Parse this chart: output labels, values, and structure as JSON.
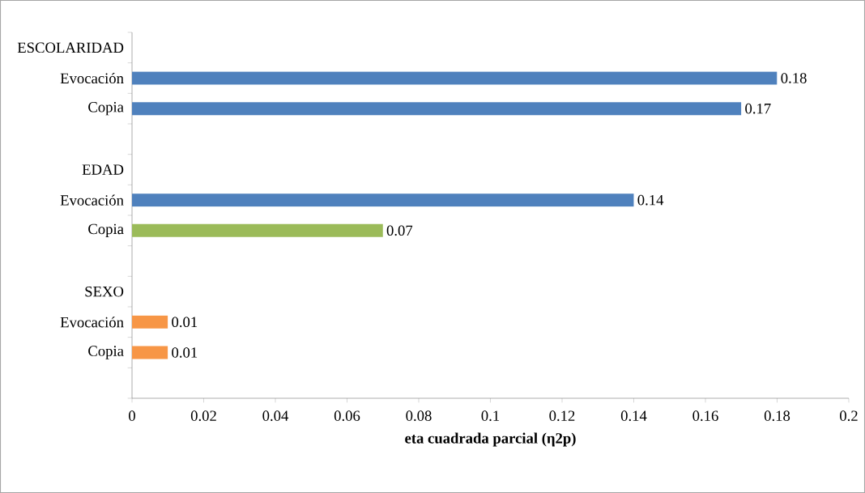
{
  "chart_data": {
    "type": "bar",
    "orientation": "horizontal",
    "xlabel": "eta cuadrada parcial (η2p)",
    "categories": [
      "ESCOLARIDAD",
      "Evocación",
      "Copia",
      null,
      "EDAD",
      "Evocación",
      "Copia",
      null,
      "SEXO",
      "Evocación",
      "Copia",
      null
    ],
    "values": [
      null,
      0.18,
      0.17,
      null,
      null,
      0.14,
      0.07,
      null,
      null,
      0.01,
      0.01,
      null
    ],
    "colors": [
      null,
      "#4f81bd",
      "#4f81bd",
      null,
      null,
      "#4f81bd",
      "#9bbb59",
      null,
      null,
      "#f79646",
      "#f79646",
      null
    ],
    "xlim": [
      0,
      0.2
    ],
    "xticks": [
      0,
      0.02,
      0.04,
      0.06,
      0.08,
      0.1,
      0.12,
      0.14,
      0.16,
      0.18,
      0.2
    ],
    "data_labels": true,
    "grid": false
  }
}
